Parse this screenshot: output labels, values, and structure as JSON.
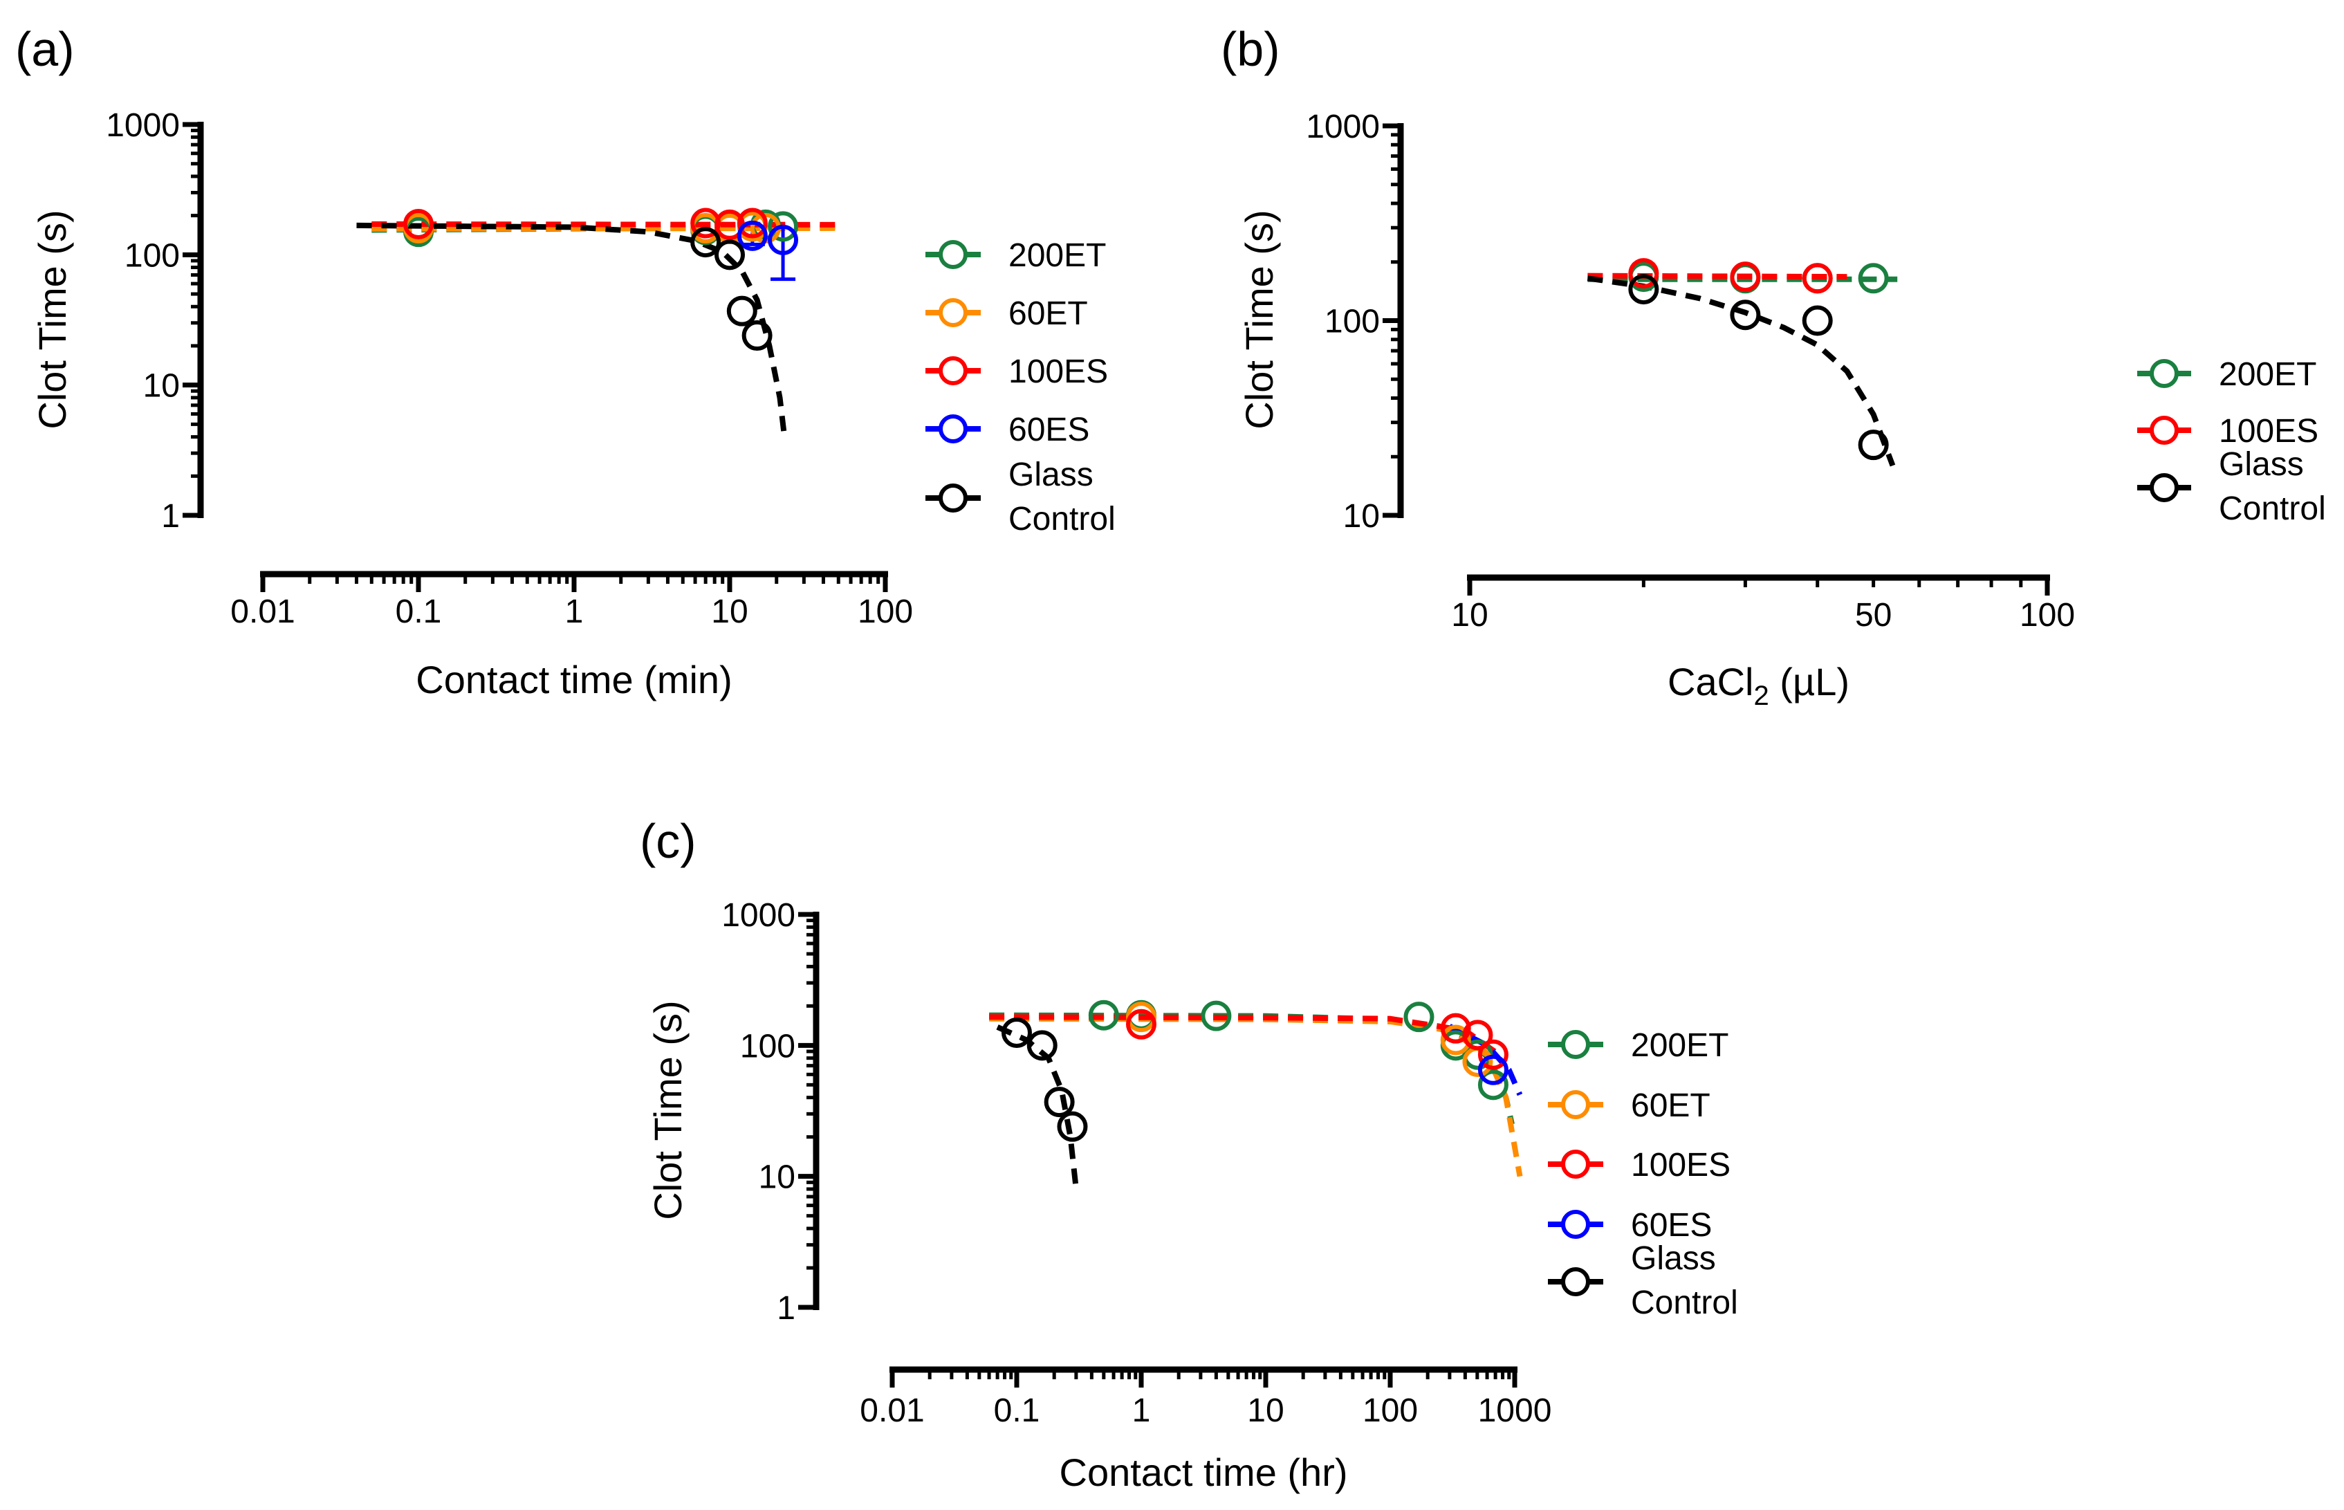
{
  "chart_data": [
    {
      "type": "scatter",
      "panel_label": "(a)",
      "ylabel": "Clot Time (s)",
      "xlabel": "Contact time (min)",
      "xscale": "log",
      "yscale": "log",
      "xlim": [
        0.01,
        100
      ],
      "ylim": [
        1,
        1000
      ],
      "xticks": [
        "0.01",
        "0.1",
        "1",
        "10",
        "100"
      ],
      "yticks": [
        "1",
        "10",
        "100",
        "1000"
      ],
      "legend": [
        "200ET",
        "60ET",
        "100ES",
        "60ES",
        "Glass Control"
      ],
      "series": [
        {
          "name": "200ET",
          "color": "#1a8040",
          "points": [
            [
              0.1,
              150
            ],
            [
              7,
              155
            ],
            [
              10,
              160
            ],
            [
              14,
              165
            ],
            [
              17,
              170
            ],
            [
              22,
              165
            ]
          ],
          "fit": [
            [
              0.05,
              155
            ],
            [
              50,
              163
            ]
          ]
        },
        {
          "name": "60ET",
          "color": "#ff8c00",
          "points": [
            [
              0.1,
              160
            ],
            [
              7,
              160
            ],
            [
              10,
              158
            ],
            [
              14,
              165
            ],
            [
              17,
              160
            ]
          ],
          "fit": [
            [
              0.05,
              158
            ],
            [
              50,
              160
            ]
          ]
        },
        {
          "name": "100ES",
          "color": "#ff0000",
          "points": [
            [
              0.1,
              172
            ],
            [
              7,
              175
            ],
            [
              10,
              170
            ],
            [
              14,
              175
            ]
          ],
          "fit": [
            [
              0.05,
              172
            ],
            [
              50,
              170
            ]
          ]
        },
        {
          "name": "60ES",
          "color": "#0000ff",
          "points": [
            [
              14,
              140
            ],
            [
              22,
              130
            ]
          ],
          "errors": [
            [
              14,
              120,
              160
            ],
            [
              22,
              65,
              170
            ]
          ]
        },
        {
          "name": "Glass Control",
          "color": "#000000",
          "points": [
            [
              7,
              125
            ],
            [
              10,
              100
            ],
            [
              12,
              37
            ],
            [
              15,
              24
            ]
          ],
          "fit": [
            [
              0.04,
              168
            ],
            [
              1,
              163
            ],
            [
              3,
              150
            ],
            [
              6,
              128
            ],
            [
              9,
              105
            ],
            [
              12,
              75
            ],
            [
              15,
              45
            ],
            [
              18,
              20
            ],
            [
              21,
              8
            ],
            [
              22.5,
              4
            ]
          ]
        }
      ]
    },
    {
      "type": "scatter",
      "panel_label": "(b)",
      "ylabel": "Clot Time (s)",
      "xlabel": "CaCl",
      "xlabel_sub": "2",
      "xlabel_unit": " (µL)",
      "xscale": "log",
      "yscale": "log",
      "xlim": [
        10,
        100
      ],
      "ylim": [
        10,
        1000
      ],
      "xticks": [
        "10",
        "50",
        "100"
      ],
      "yticks": [
        "10",
        "100",
        "1000"
      ],
      "legend": [
        "200ET",
        "100ES",
        "Glass Control"
      ],
      "series": [
        {
          "name": "200ET",
          "color": "#1a8040",
          "points": [
            [
              20,
              168
            ],
            [
              30,
              165
            ],
            [
              40,
              165
            ],
            [
              50,
              165
            ]
          ],
          "fit": [
            [
              16,
              163
            ],
            [
              55,
              163
            ]
          ]
        },
        {
          "name": "100ES",
          "color": "#ff0000",
          "points": [
            [
              20,
              175
            ],
            [
              30,
              168
            ],
            [
              40,
              165
            ]
          ],
          "fit": [
            [
              16,
              170
            ],
            [
              45,
              168
            ]
          ]
        },
        {
          "name": "Glass Control",
          "color": "#000000",
          "points": [
            [
              20,
              145
            ],
            [
              30,
              107
            ],
            [
              40,
              100
            ],
            [
              50,
              23
            ]
          ],
          "fit": [
            [
              16,
              165
            ],
            [
              20,
              150
            ],
            [
              25,
              130
            ],
            [
              30,
              110
            ],
            [
              35,
              92
            ],
            [
              40,
              75
            ],
            [
              45,
              55
            ],
            [
              50,
              33
            ],
            [
              54,
              18
            ]
          ]
        }
      ]
    },
    {
      "type": "scatter",
      "panel_label": "(c)",
      "ylabel": "Clot Time (s)",
      "xlabel": "Contact time (hr)",
      "xscale": "log",
      "yscale": "log",
      "xlim": [
        0.01,
        1000
      ],
      "ylim": [
        1,
        1000
      ],
      "xticks": [
        "0.01",
        "0.1",
        "1",
        "10",
        "100",
        "1000"
      ],
      "yticks": [
        "1",
        "10",
        "100",
        "1000"
      ],
      "legend": [
        "200ET",
        "60ET",
        "100ES",
        "60ES",
        "Glass Control"
      ],
      "series": [
        {
          "name": "200ET",
          "color": "#1a8040",
          "points": [
            [
              0.5,
              170
            ],
            [
              1,
              170
            ],
            [
              4,
              168
            ],
            [
              170,
              165
            ],
            [
              336,
              100
            ],
            [
              504,
              85
            ],
            [
              672,
              50
            ]
          ],
          "fit": [
            [
              0.06,
              170
            ],
            [
              10,
              168
            ],
            [
              100,
              158
            ],
            [
              250,
              140
            ],
            [
              450,
              110
            ],
            [
              650,
              75
            ],
            [
              850,
              40
            ],
            [
              950,
              25
            ]
          ]
        },
        {
          "name": "60ET",
          "color": "#ff8c00",
          "points": [
            [
              1,
              165
            ],
            [
              336,
              110
            ],
            [
              504,
              75
            ]
          ],
          "fit": [
            [
              0.06,
              160
            ],
            [
              10,
              158
            ],
            [
              100,
              152
            ],
            [
              300,
              130
            ],
            [
              600,
              85
            ],
            [
              850,
              40
            ],
            [
              1100,
              10
            ]
          ]
        },
        {
          "name": "100ES",
          "color": "#ff0000",
          "points": [
            [
              1,
              145
            ],
            [
              336,
              135
            ],
            [
              504,
              120
            ],
            [
              672,
              85
            ]
          ],
          "fit": [
            [
              0.06,
              165
            ],
            [
              10,
              163
            ],
            [
              100,
              160
            ],
            [
              400,
              130
            ],
            [
              750,
              85
            ]
          ]
        },
        {
          "name": "60ES",
          "color": "#0000ff",
          "points": [
            [
              672,
              65
            ]
          ],
          "fit": [
            [
              300,
              140
            ],
            [
              600,
              100
            ],
            [
              900,
              65
            ],
            [
              1100,
              42
            ]
          ]
        },
        {
          "name": "Glass Control",
          "color": "#000000",
          "points": [
            [
              0.1,
              125
            ],
            [
              0.16,
              100
            ],
            [
              0.22,
              37
            ],
            [
              0.28,
              24
            ]
          ],
          "fit": [
            [
              0.07,
              138
            ],
            [
              0.12,
              110
            ],
            [
              0.18,
              80
            ],
            [
              0.23,
              45
            ],
            [
              0.27,
              20
            ],
            [
              0.3,
              8
            ]
          ]
        }
      ]
    }
  ]
}
